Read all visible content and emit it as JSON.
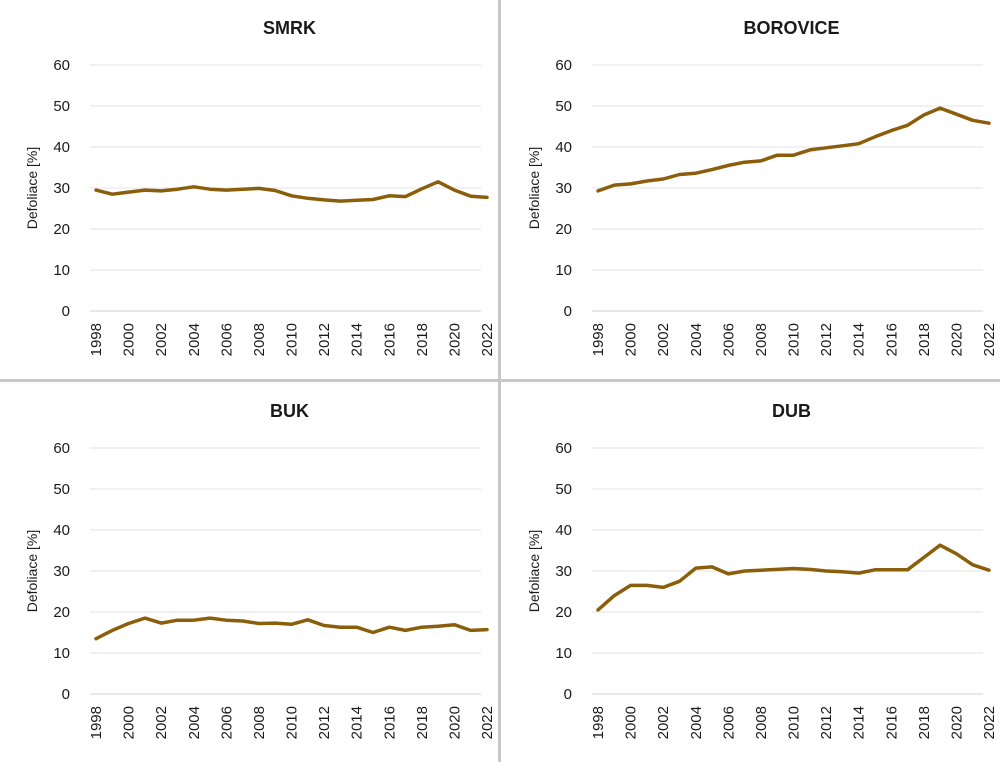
{
  "colors": {
    "line": "#8B5E0B"
  },
  "chart_data": [
    {
      "type": "line",
      "title": "SMRK",
      "ylabel": "Defoliace [%]",
      "ylim": [
        0,
        60
      ],
      "yticks": [
        0,
        10,
        20,
        30,
        40,
        50,
        60
      ],
      "xticks": [
        "1998",
        "2000",
        "2002",
        "2004",
        "2006",
        "2008",
        "2010",
        "2012",
        "2014",
        "2016",
        "2018",
        "2020",
        "2022"
      ],
      "x": [
        1998,
        1999,
        2000,
        2001,
        2002,
        2003,
        2004,
        2005,
        2006,
        2007,
        2008,
        2009,
        2010,
        2011,
        2012,
        2013,
        2014,
        2015,
        2016,
        2017,
        2018,
        2019,
        2020,
        2021,
        2022
      ],
      "values": [
        29.5,
        28.5,
        29,
        29.5,
        29.3,
        29.7,
        30.3,
        29.7,
        29.5,
        29.7,
        29.9,
        29.4,
        28.1,
        27.5,
        27.1,
        26.8,
        27,
        27.2,
        28.1,
        27.9,
        29.8,
        31.5,
        29.5,
        28,
        27.7
      ]
    },
    {
      "type": "line",
      "title": "BOROVICE",
      "ylabel": "Defoliace [%]",
      "ylim": [
        0,
        60
      ],
      "yticks": [
        0,
        10,
        20,
        30,
        40,
        50,
        60
      ],
      "xticks": [
        "1998",
        "2000",
        "2002",
        "2004",
        "2006",
        "2008",
        "2010",
        "2012",
        "2014",
        "2016",
        "2018",
        "2020",
        "2022"
      ],
      "x": [
        1998,
        1999,
        2000,
        2001,
        2002,
        2003,
        2004,
        2005,
        2006,
        2007,
        2008,
        2009,
        2010,
        2011,
        2012,
        2013,
        2014,
        2015,
        2016,
        2017,
        2018,
        2019,
        2020,
        2021,
        2022
      ],
      "values": [
        29.3,
        30.7,
        31,
        31.7,
        32.2,
        33.3,
        33.6,
        34.5,
        35.5,
        36.3,
        36.6,
        38,
        38,
        39.3,
        39.8,
        40.3,
        40.8,
        42.5,
        44,
        45.3,
        47.8,
        49.5,
        48,
        46.5,
        45.8
      ]
    },
    {
      "type": "line",
      "title": "BUK",
      "ylabel": "Defoliace [%]",
      "ylim": [
        0,
        60
      ],
      "yticks": [
        0,
        10,
        20,
        30,
        40,
        50,
        60
      ],
      "xticks": [
        "1998",
        "2000",
        "2002",
        "2004",
        "2006",
        "2008",
        "2010",
        "2012",
        "2014",
        "2016",
        "2018",
        "2020",
        "2022"
      ],
      "x": [
        1998,
        1999,
        2000,
        2001,
        2002,
        2003,
        2004,
        2005,
        2006,
        2007,
        2008,
        2009,
        2010,
        2011,
        2012,
        2013,
        2014,
        2015,
        2016,
        2017,
        2018,
        2019,
        2020,
        2021,
        2022
      ],
      "values": [
        13.5,
        15.5,
        17.2,
        18.5,
        17.3,
        18,
        18,
        18.5,
        18,
        17.8,
        17.2,
        17.3,
        17,
        18.1,
        16.7,
        16.3,
        16.3,
        15,
        16.3,
        15.5,
        16.3,
        16.5,
        16.9,
        15.5,
        15.7
      ]
    },
    {
      "type": "line",
      "title": "DUB",
      "ylabel": "Defoliace [%]",
      "ylim": [
        0,
        60
      ],
      "yticks": [
        0,
        10,
        20,
        30,
        40,
        50,
        60
      ],
      "xticks": [
        "1998",
        "2000",
        "2002",
        "2004",
        "2006",
        "2008",
        "2010",
        "2012",
        "2014",
        "2016",
        "2018",
        "2020",
        "2022"
      ],
      "x": [
        1998,
        1999,
        2000,
        2001,
        2002,
        2003,
        2004,
        2005,
        2006,
        2007,
        2008,
        2009,
        2010,
        2011,
        2012,
        2013,
        2014,
        2015,
        2016,
        2017,
        2018,
        2019,
        2020,
        2021,
        2022
      ],
      "values": [
        20.5,
        24,
        26.5,
        26.5,
        26,
        27.5,
        30.7,
        31,
        29.3,
        30,
        30.2,
        30.4,
        30.6,
        30.4,
        30,
        29.8,
        29.5,
        30.3,
        30.3,
        30.3,
        33.3,
        36.3,
        34.2,
        31.5,
        30.2
      ]
    }
  ]
}
